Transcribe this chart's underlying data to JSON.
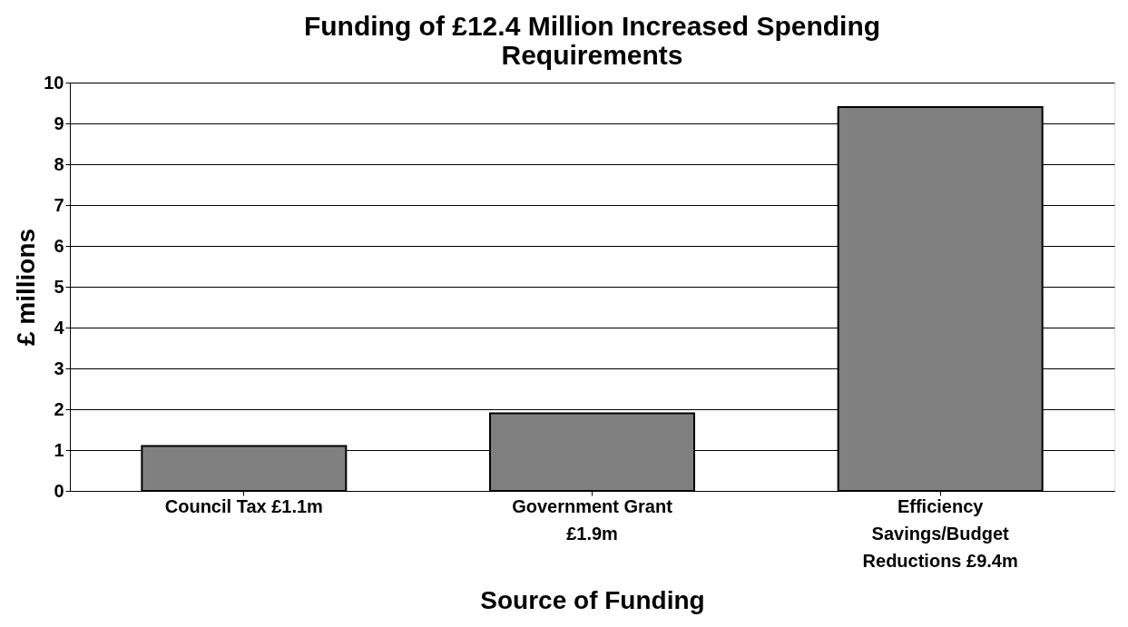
{
  "chart_data": {
    "type": "bar",
    "title": "Funding of £12.4 Million Increased Spending Requirements",
    "xlabel": "Source of Funding",
    "ylabel": "£ millions",
    "categories": [
      "Council Tax £1.1m",
      "Government Grant £1.9m",
      "Efficiency Savings/Budget Reductions £9.4m"
    ],
    "values": [
      1.1,
      1.9,
      9.4
    ],
    "color": "#808080",
    "ylim": [
      0,
      10
    ],
    "yticks": [
      0,
      1,
      2,
      3,
      4,
      5,
      6,
      7,
      8,
      9,
      10
    ],
    "grid": "y"
  }
}
